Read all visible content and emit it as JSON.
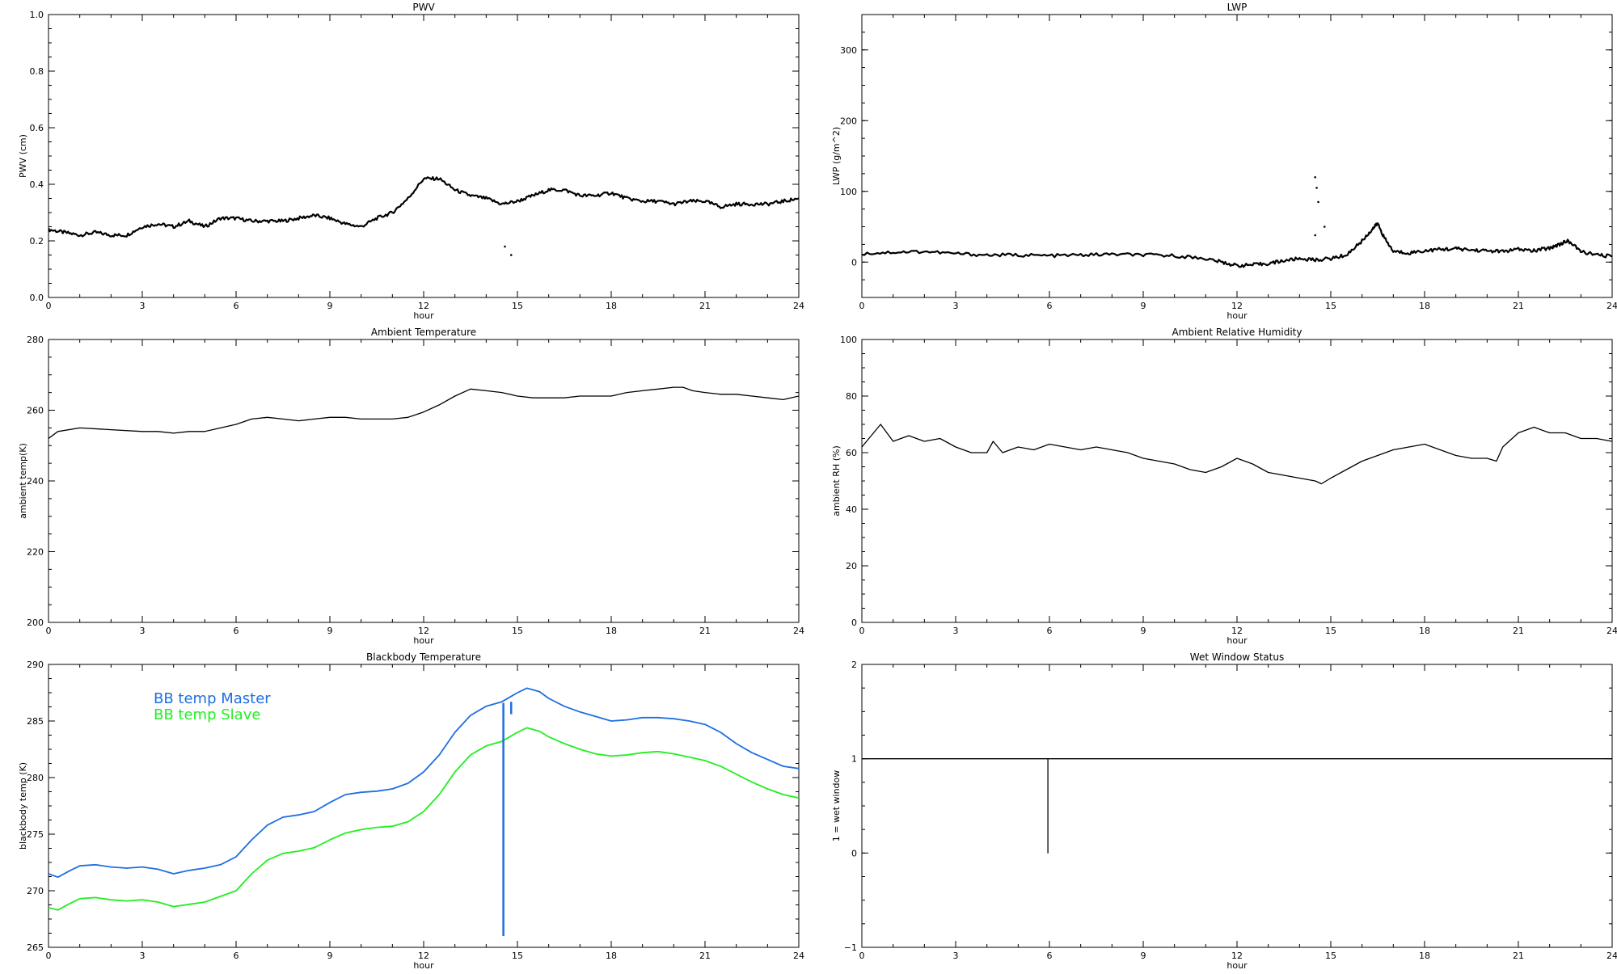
{
  "chart_data": [
    {
      "type": "line",
      "title": "PWV",
      "xlabel": "hour",
      "ylabel": "PWV (cm)",
      "xlim": [
        0,
        24
      ],
      "ylim": [
        0.0,
        1.0
      ],
      "xticks": [
        "0",
        "3",
        "6",
        "9",
        "12",
        "15",
        "18",
        "21",
        "24"
      ],
      "yticks": [
        "0.0",
        "0.2",
        "0.4",
        "0.6",
        "0.8",
        "1.0"
      ],
      "grid": false,
      "series": [
        {
          "color": "#000000",
          "x": [
            0,
            0.5,
            1,
            1.5,
            2,
            2.5,
            3,
            3.5,
            4,
            4.5,
            5,
            5.5,
            6,
            6.5,
            7,
            7.5,
            8,
            8.5,
            9,
            9.5,
            10,
            10.5,
            11,
            11.5,
            12,
            12.5,
            13,
            13.5,
            14,
            14.5,
            15,
            15.5,
            16,
            16.5,
            17,
            17.5,
            18,
            18.5,
            19,
            19.5,
            20,
            20.5,
            21,
            21.5,
            22,
            22.5,
            23,
            23.5,
            24
          ],
          "y": [
            0.24,
            0.23,
            0.22,
            0.23,
            0.22,
            0.22,
            0.25,
            0.26,
            0.25,
            0.27,
            0.25,
            0.28,
            0.28,
            0.27,
            0.27,
            0.27,
            0.28,
            0.29,
            0.28,
            0.26,
            0.25,
            0.28,
            0.3,
            0.35,
            0.42,
            0.42,
            0.38,
            0.36,
            0.35,
            0.33,
            0.34,
            0.36,
            0.38,
            0.38,
            0.36,
            0.36,
            0.37,
            0.35,
            0.34,
            0.34,
            0.33,
            0.34,
            0.34,
            0.32,
            0.33,
            0.33,
            0.33,
            0.34,
            0.35
          ]
        }
      ],
      "outliers": [
        {
          "x": 14.6,
          "y": 0.18
        },
        {
          "x": 14.8,
          "y": 0.15
        }
      ]
    },
    {
      "type": "line",
      "title": "LWP",
      "xlabel": "hour",
      "ylabel": "LWP (g/m^2)",
      "xlim": [
        0,
        24
      ],
      "ylim": [
        -50,
        350
      ],
      "xticks": [
        "0",
        "3",
        "6",
        "9",
        "12",
        "15",
        "18",
        "21",
        "24"
      ],
      "yticks": [
        "0",
        "100",
        "200",
        "300"
      ],
      "grid": false,
      "series": [
        {
          "color": "#000000",
          "x": [
            0,
            1,
            2,
            3,
            4,
            5,
            6,
            7,
            8,
            9,
            10,
            11,
            11.5,
            12,
            12.5,
            13,
            13.5,
            14,
            14.5,
            15,
            15.5,
            16,
            16.3,
            16.5,
            16.7,
            17,
            17.5,
            18,
            18.5,
            19,
            19.5,
            20,
            20.5,
            21,
            21.5,
            22,
            22.3,
            22.6,
            23,
            23.5,
            24
          ],
          "y": [
            12,
            14,
            15,
            12,
            10,
            10,
            9,
            10,
            11,
            10,
            9,
            5,
            0,
            -5,
            -4,
            -2,
            2,
            5,
            3,
            5,
            10,
            30,
            45,
            55,
            35,
            15,
            13,
            16,
            18,
            19,
            17,
            16,
            15,
            18,
            16,
            20,
            25,
            30,
            15,
            10,
            8
          ]
        }
      ],
      "outliers": [
        {
          "x": 14.5,
          "y": 120
        },
        {
          "x": 14.55,
          "y": 105
        },
        {
          "x": 14.6,
          "y": 85
        },
        {
          "x": 14.8,
          "y": 50
        },
        {
          "x": 14.5,
          "y": 38
        }
      ]
    },
    {
      "type": "line",
      "title": "Ambient Temperature",
      "xlabel": "hour",
      "ylabel": "ambient temp(K)",
      "xlim": [
        0,
        24
      ],
      "ylim": [
        200,
        280
      ],
      "xticks": [
        "0",
        "3",
        "6",
        "9",
        "12",
        "15",
        "18",
        "21",
        "24"
      ],
      "yticks": [
        "200",
        "220",
        "240",
        "260",
        "280"
      ],
      "grid": false,
      "series": [
        {
          "color": "#000000",
          "x": [
            0,
            0.3,
            1,
            2,
            3,
            3.5,
            4,
            4.5,
            5,
            5.5,
            6,
            6.5,
            7,
            7.5,
            8,
            8.5,
            9,
            9.5,
            10,
            10.5,
            11,
            11.5,
            12,
            12.5,
            13,
            13.5,
            14,
            14.5,
            15,
            15.5,
            16,
            16.5,
            17,
            17.5,
            18,
            18.5,
            19,
            19.5,
            20,
            20.3,
            20.6,
            21,
            21.5,
            22,
            22.5,
            23,
            23.5,
            24
          ],
          "y": [
            252,
            254,
            255,
            254.5,
            254,
            254,
            253.5,
            254,
            254,
            255,
            256,
            257.5,
            258,
            257.5,
            257,
            257.5,
            258,
            258,
            257.5,
            257.5,
            257.5,
            258,
            259.5,
            261.5,
            264,
            266,
            265.5,
            265,
            264,
            263.5,
            263.5,
            263.5,
            264,
            264,
            264,
            265,
            265.5,
            266,
            266.5,
            266.5,
            265.5,
            265,
            264.5,
            264.5,
            264,
            263.5,
            263,
            264
          ]
        }
      ]
    },
    {
      "type": "line",
      "title": "Ambient Relative Humidity",
      "xlabel": "hour",
      "ylabel": "ambient RH (%)",
      "xlim": [
        0,
        24
      ],
      "ylim": [
        0,
        100
      ],
      "xticks": [
        "0",
        "3",
        "6",
        "9",
        "12",
        "15",
        "18",
        "21",
        "24"
      ],
      "yticks": [
        "0",
        "20",
        "40",
        "60",
        "80",
        "100"
      ],
      "grid": false,
      "series": [
        {
          "color": "#000000",
          "x": [
            0,
            0.3,
            0.6,
            1,
            1.5,
            2,
            2.5,
            3,
            3.5,
            4,
            4.2,
            4.5,
            5,
            5.5,
            6,
            6.5,
            7,
            7.5,
            8,
            8.5,
            9,
            9.5,
            10,
            10.5,
            11,
            11.5,
            12,
            12.5,
            13,
            13.5,
            14,
            14.5,
            14.7,
            15,
            15.5,
            16,
            16.5,
            17,
            17.5,
            18,
            18.5,
            19,
            19.5,
            20,
            20.3,
            20.5,
            21,
            21.5,
            22,
            22.5,
            23,
            23.5,
            24
          ],
          "y": [
            62,
            66,
            70,
            64,
            66,
            64,
            65,
            62,
            60,
            60,
            64,
            60,
            62,
            61,
            63,
            62,
            61,
            62,
            61,
            60,
            58,
            57,
            56,
            54,
            53,
            55,
            58,
            56,
            53,
            52,
            51,
            50,
            49,
            51,
            54,
            57,
            59,
            61,
            62,
            63,
            61,
            59,
            58,
            58,
            57,
            62,
            67,
            69,
            67,
            67,
            65,
            65,
            64
          ]
        }
      ]
    },
    {
      "type": "line",
      "title": "Blackbody Temperature",
      "xlabel": "hour",
      "ylabel": "blackbody temp (K)",
      "xlim": [
        0,
        24
      ],
      "ylim": [
        265,
        290
      ],
      "xticks": [
        "0",
        "3",
        "6",
        "9",
        "12",
        "15",
        "18",
        "21",
        "24"
      ],
      "yticks": [
        "265",
        "270",
        "275",
        "280",
        "285",
        "290"
      ],
      "grid": false,
      "legend_position": "top-left",
      "series": [
        {
          "name": "BB temp Master",
          "color": "#1f6fe0",
          "x": [
            0,
            0.3,
            0.7,
            1,
            1.5,
            2,
            2.5,
            3,
            3.5,
            4,
            4.5,
            5,
            5.5,
            6,
            6.5,
            7,
            7.5,
            8,
            8.5,
            9,
            9.5,
            10,
            10.5,
            11,
            11.5,
            12,
            12.5,
            13,
            13.5,
            14,
            14.5,
            15,
            15.3,
            15.7,
            16,
            16.5,
            17,
            17.5,
            18,
            18.5,
            19,
            19.5,
            20,
            20.5,
            21,
            21.5,
            22,
            22.5,
            23,
            23.5,
            24
          ],
          "y": [
            271.5,
            271.2,
            271.8,
            272.2,
            272.3,
            272.1,
            272.0,
            272.1,
            271.9,
            271.5,
            271.8,
            272.0,
            272.3,
            273.0,
            274.5,
            275.8,
            276.5,
            276.7,
            277.0,
            277.8,
            278.5,
            278.7,
            278.8,
            279.0,
            279.5,
            280.5,
            282.0,
            284.0,
            285.5,
            286.3,
            286.7,
            287.5,
            287.9,
            287.6,
            287.0,
            286.3,
            285.8,
            285.4,
            285.0,
            285.1,
            285.3,
            285.3,
            285.2,
            285.0,
            284.7,
            284.0,
            283.0,
            282.2,
            281.6,
            281.0,
            280.8
          ]
        },
        {
          "name": "BB temp Slave",
          "color": "#22ee22",
          "x": [
            0,
            0.3,
            0.7,
            1,
            1.5,
            2,
            2.5,
            3,
            3.5,
            4,
            4.5,
            5,
            5.5,
            6,
            6.5,
            7,
            7.5,
            8,
            8.5,
            9,
            9.5,
            10,
            10.5,
            11,
            11.5,
            12,
            12.5,
            13,
            13.5,
            14,
            14.5,
            15,
            15.3,
            15.7,
            16,
            16.5,
            17,
            17.5,
            18,
            18.5,
            19,
            19.5,
            20,
            20.5,
            21,
            21.5,
            22,
            22.5,
            23,
            23.5,
            24
          ],
          "y": [
            268.5,
            268.3,
            268.9,
            269.3,
            269.4,
            269.2,
            269.1,
            269.2,
            269.0,
            268.6,
            268.8,
            269.0,
            269.5,
            270.0,
            271.5,
            272.7,
            273.3,
            273.5,
            273.8,
            274.5,
            275.1,
            275.4,
            275.6,
            275.7,
            276.1,
            277.0,
            278.5,
            280.5,
            282.0,
            282.8,
            283.2,
            284.0,
            284.4,
            284.1,
            283.6,
            283.0,
            282.5,
            282.1,
            281.9,
            282.0,
            282.2,
            282.3,
            282.1,
            281.8,
            281.5,
            281.0,
            280.3,
            279.6,
            279.0,
            278.5,
            278.2
          ]
        }
      ],
      "spikes": [
        {
          "series": "BB temp Master",
          "x": 14.55,
          "y_low": 266.0,
          "y_high": 286.6
        },
        {
          "series": "BB temp Master",
          "x": 14.8,
          "y_low": 285.6,
          "y_high": 286.7
        }
      ]
    },
    {
      "type": "line",
      "title": "Wet Window Status",
      "xlabel": "hour",
      "ylabel": "1 = wet window",
      "xlim": [
        0,
        24
      ],
      "ylim": [
        -1,
        2
      ],
      "xticks": [
        "0",
        "3",
        "6",
        "9",
        "12",
        "15",
        "18",
        "21",
        "24"
      ],
      "yticks": [
        "−1",
        "0",
        "1",
        "2"
      ],
      "grid": false,
      "series": [
        {
          "color": "#000000",
          "x": [
            0,
            5.95,
            5.95,
            5.95,
            24
          ],
          "y": [
            1,
            1,
            0,
            1,
            1
          ]
        }
      ]
    }
  ]
}
